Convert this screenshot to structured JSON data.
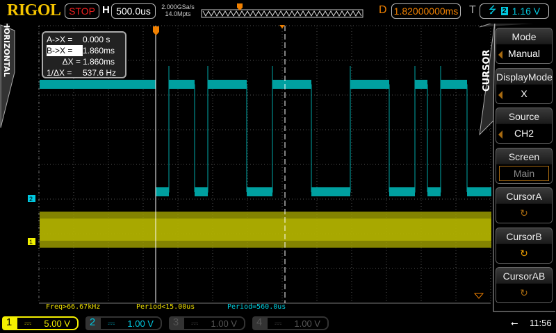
{
  "header": {
    "brand": "RIGOL",
    "run_state": "STOP",
    "h_label": "H",
    "timebase": "500.0us",
    "sample_rate": "2.000GSa/s",
    "mem_depth": "14.0Mpts",
    "delay_label": "D",
    "delay": "1.82000000ms",
    "trig_label": "T",
    "trig_source": "2",
    "trig_level": "1.16 V"
  },
  "left_tab": "HORIZONTAL",
  "cursor_readout": {
    "a_label": "A->X =",
    "a_value": "0.000 s",
    "b_label": "B->X =",
    "b_value": "1.860ms",
    "dx_label": "ΔX =",
    "dx_value": "1.860ms",
    "inv_label": "1/ΔX =",
    "inv_value": "537.6 Hz"
  },
  "menu": {
    "title": "CURSOR",
    "items": [
      {
        "label": "Mode",
        "value": "Manual",
        "arrow": true
      },
      {
        "label": "DisplayMode",
        "value": "X",
        "arrow": true
      },
      {
        "label": "Source",
        "value": "CH2",
        "arrow": true
      },
      {
        "label": "Screen",
        "value": "Main",
        "boxed": true
      },
      {
        "label": "CursorA",
        "icon": "rotate-knob-icon"
      },
      {
        "label": "CursorB",
        "icon": "rotate-knob-icon"
      },
      {
        "label": "CursorAB",
        "icon": "rotate-knob-icon"
      }
    ]
  },
  "measurements": [
    {
      "text": "Freq>66.67kHz",
      "color": "#f0e000"
    },
    {
      "text": "Period<15.00us",
      "color": "#f0e000"
    },
    {
      "text": "Period=560.0us",
      "color": "#00d0e0"
    }
  ],
  "channels": [
    {
      "num": "1",
      "coupling": "⎓",
      "scale": "5.00 V",
      "color": "#f5f000",
      "active": true
    },
    {
      "num": "2",
      "coupling": "⎓",
      "scale": "1.00 V",
      "color": "#00c8e0",
      "active": true
    },
    {
      "num": "3",
      "coupling": "⎓",
      "scale": "1.00 V",
      "color": "#555",
      "active": false
    },
    {
      "num": "4",
      "coupling": "⎓",
      "scale": "1.00 V",
      "color": "#555",
      "active": false
    }
  ],
  "channel_markers": {
    "ch1": "1",
    "ch2": "2"
  },
  "clock": "11:56",
  "colors": {
    "ch1": "#a8a800",
    "ch2": "#00a8a8",
    "trigger": "#f08000"
  },
  "ch2_edges": [
    224,
    243,
    280,
    299,
    355,
    392,
    448,
    504,
    560,
    597,
    615,
    634,
    672
  ]
}
